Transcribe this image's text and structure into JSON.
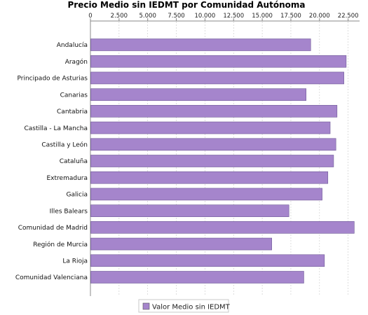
{
  "chart_data": {
    "type": "bar",
    "orientation": "horizontal",
    "title": "Precio Medio sin IEDMT por Comunidad Autónoma",
    "xlabel": "",
    "ylabel": "",
    "axis_position": "top",
    "xlim": [
      0,
      23500
    ],
    "ticks": [
      "0",
      "2.500",
      "5.000",
      "7.500",
      "10.000",
      "12.500",
      "15.000",
      "17.500",
      "20.000",
      "22.500"
    ],
    "tick_values": [
      0,
      2500,
      5000,
      7500,
      10000,
      12500,
      15000,
      17500,
      20000,
      22500
    ],
    "grid": true,
    "legend_position": "bottom",
    "bar_color": "#a585cc",
    "categories": [
      "Andalucía",
      "Aragón",
      "Principado de Asturias",
      "Canarias",
      "Cantabria",
      "Castilla - La Mancha",
      "Castilla y León",
      "Cataluña",
      "Extremadura",
      "Galicia",
      "Illes Balears",
      "Comunidad de Madrid",
      "Región de Murcia",
      "La Rioja",
      "Comunidad Valenciana"
    ],
    "series": [
      {
        "name": "Valor Medio sin IEDMT",
        "values": [
          19200,
          22300,
          22100,
          18800,
          21500,
          20900,
          21400,
          21200,
          20700,
          20200,
          17300,
          23000,
          15800,
          20400,
          18600
        ]
      }
    ]
  }
}
